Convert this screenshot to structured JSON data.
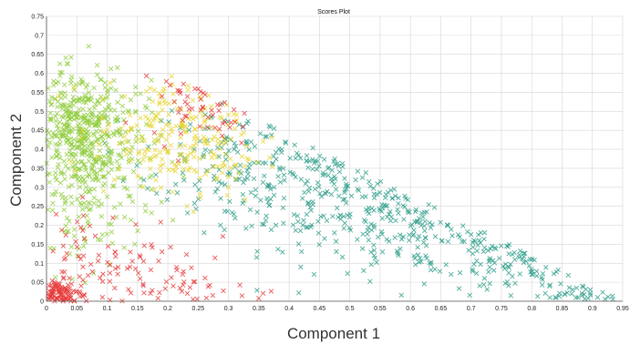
{
  "chart_data": {
    "type": "scatter",
    "title": "Scores Plot",
    "xlabel": "Component 1",
    "ylabel": "Component 2",
    "xlim": [
      0,
      0.95
    ],
    "ylim": [
      0,
      0.75
    ],
    "xticks": [
      "0",
      "0.05",
      "0.1",
      "0.15",
      "0.2",
      "0.25",
      "0.3",
      "0.35",
      "0.4",
      "0.45",
      "0.5",
      "0.55",
      "0.6",
      "0.65",
      "0.7",
      "0.75",
      "0.8",
      "0.85",
      "0.9",
      "0.95"
    ],
    "yticks": [
      "0",
      "0.05",
      "0.1",
      "0.15",
      "0.2",
      "0.25",
      "0.3",
      "0.35",
      "0.4",
      "0.45",
      "0.5",
      "0.55",
      "0.6",
      "0.65",
      "0.7",
      "0.75"
    ],
    "grid": true,
    "marker": "x",
    "series": [
      {
        "color": "#2e9e8a",
        "clusters": [
          {
            "center": [
              0.45,
              0.3
            ],
            "spread": [
              0.1,
              0.08
            ],
            "count": 220
          },
          {
            "center": [
              0.62,
              0.2
            ],
            "spread": [
              0.09,
              0.07
            ],
            "count": 160
          },
          {
            "center": [
              0.78,
              0.1
            ],
            "spread": [
              0.07,
              0.05
            ],
            "count": 90
          },
          {
            "center": [
              0.3,
              0.4
            ],
            "spread": [
              0.07,
              0.07
            ],
            "count": 100
          },
          {
            "center": [
              0.88,
              0.02
            ],
            "spread": [
              0.04,
              0.015
            ],
            "count": 30
          }
        ]
      },
      {
        "color": "#8fcc3c",
        "clusters": [
          {
            "center": [
              0.05,
              0.45
            ],
            "spread": [
              0.04,
              0.08
            ],
            "count": 320
          },
          {
            "center": [
              0.09,
              0.4
            ],
            "spread": [
              0.05,
              0.1
            ],
            "count": 160
          },
          {
            "center": [
              0.06,
              0.25
            ],
            "spread": [
              0.05,
              0.09
            ],
            "count": 90
          }
        ]
      },
      {
        "color": "#e8d530",
        "clusters": [
          {
            "center": [
              0.2,
              0.45
            ],
            "spread": [
              0.06,
              0.07
            ],
            "count": 170
          },
          {
            "center": [
              0.26,
              0.38
            ],
            "spread": [
              0.05,
              0.06
            ],
            "count": 70
          }
        ]
      },
      {
        "color": "#e63b3b",
        "clusters": [
          {
            "center": [
              0.02,
              0.02
            ],
            "spread": [
              0.02,
              0.02
            ],
            "count": 90
          },
          {
            "center": [
              0.1,
              0.1
            ],
            "spread": [
              0.08,
              0.07
            ],
            "count": 90
          },
          {
            "center": [
              0.27,
              0.55
            ],
            "spread": [
              0.05,
              0.06
            ],
            "count": 55
          },
          {
            "center": [
              0.22,
              0.02
            ],
            "spread": [
              0.08,
              0.02
            ],
            "count": 30
          }
        ]
      }
    ]
  }
}
